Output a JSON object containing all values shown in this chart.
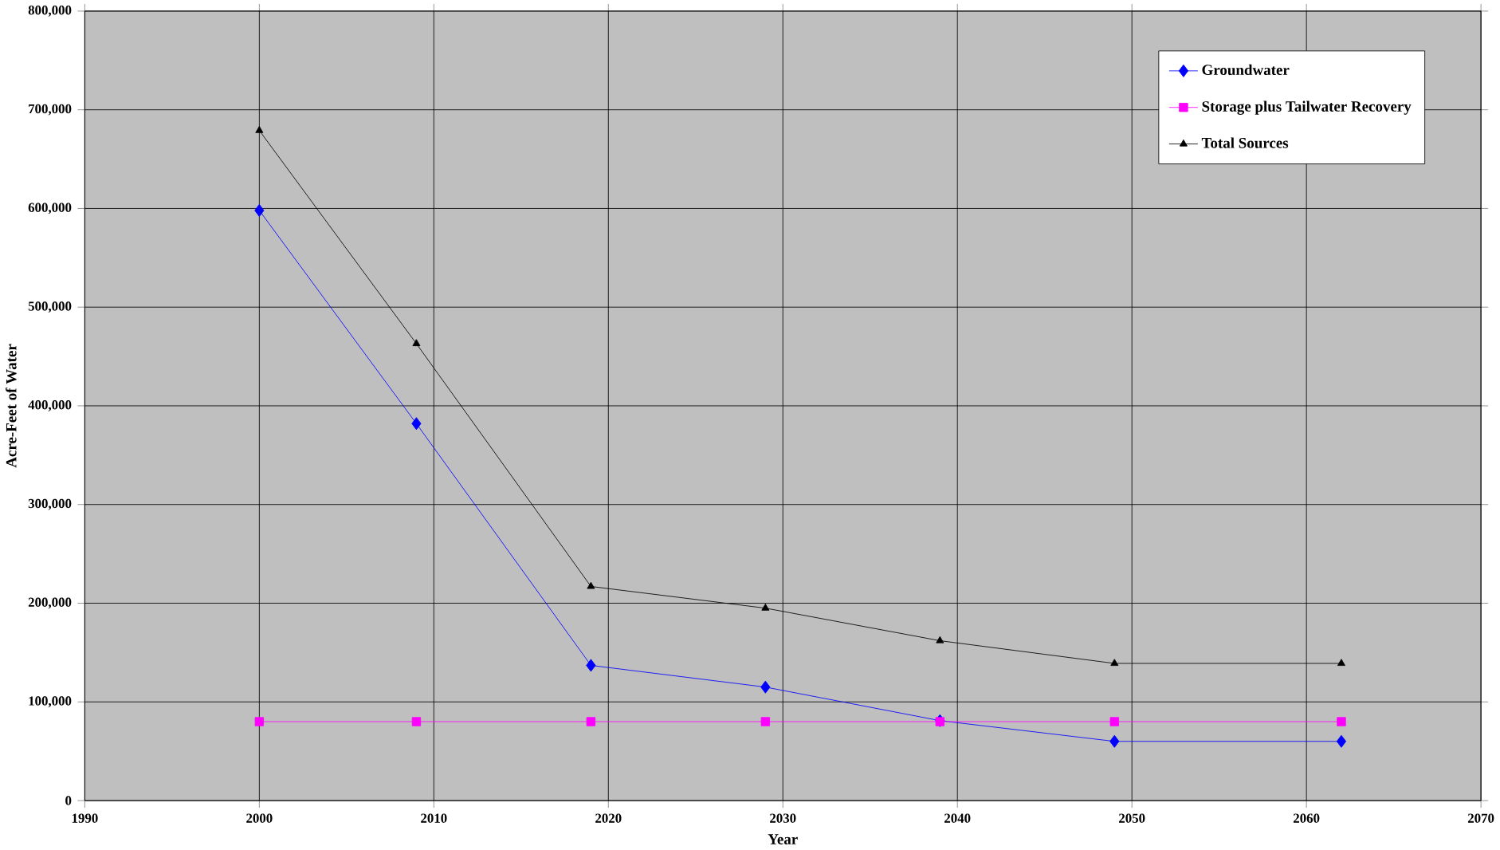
{
  "chart_data": {
    "type": "line",
    "xlabel": "Year",
    "ylabel": "Acre-Feet of Water",
    "x": [
      2000,
      2009,
      2019,
      2029,
      2039,
      2049,
      2062
    ],
    "series": [
      {
        "name": "Groundwater",
        "color": "#0000ff",
        "marker": "diamond",
        "values": [
          598000,
          382000,
          137000,
          115000,
          81000,
          60000,
          60000
        ]
      },
      {
        "name": "Storage plus Tailwater Recovery",
        "color": "#ff00ff",
        "marker": "square",
        "values": [
          80000,
          80000,
          80000,
          80000,
          80000,
          80000,
          80000
        ]
      },
      {
        "name": "Total Sources",
        "color": "#000000",
        "marker": "triangle",
        "values": [
          679000,
          463000,
          217000,
          195000,
          162000,
          139000,
          139000
        ]
      }
    ],
    "xlim": [
      1990,
      2070
    ],
    "xticks": [
      1990,
      2000,
      2010,
      2020,
      2030,
      2040,
      2050,
      2060,
      2070
    ],
    "ylim": [
      0,
      800000
    ],
    "yticks": [
      {
        "value": 0,
        "label": "0"
      },
      {
        "value": 100000,
        "label": "100,000"
      },
      {
        "value": 200000,
        "label": "200,000"
      },
      {
        "value": 300000,
        "label": "300,000"
      },
      {
        "value": 400000,
        "label": "400,000"
      },
      {
        "value": 500000,
        "label": "500,000"
      },
      {
        "value": 600000,
        "label": "600,000"
      },
      {
        "value": 700000,
        "label": "700,000"
      },
      {
        "value": 800000,
        "label": "800,000"
      }
    ],
    "grid": true,
    "legend": "top right",
    "line_style": "solid"
  }
}
